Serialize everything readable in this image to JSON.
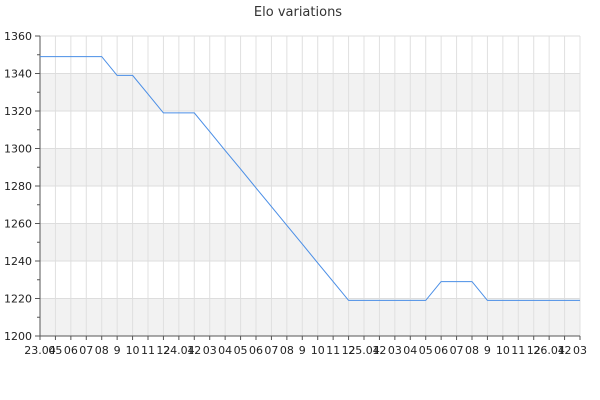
{
  "chart_data": {
    "type": "line",
    "title": "Elo variations",
    "xlabel": "",
    "ylabel": "",
    "ylim": [
      1200,
      1360
    ],
    "yticks": [
      1200,
      1220,
      1240,
      1260,
      1280,
      1300,
      1320,
      1340,
      1360
    ],
    "xticks": [
      "23.04",
      "05",
      "06",
      "07",
      "08",
      "9",
      "10",
      "11",
      "12",
      "24.04",
      "12",
      "03",
      "04",
      "05",
      "06",
      "07",
      "08",
      "9",
      "10",
      "11",
      "12",
      "25.04",
      "12",
      "03",
      "04",
      "05",
      "06",
      "07",
      "08",
      "9",
      "10",
      "11",
      "12",
      "26.04",
      "12",
      "03"
    ],
    "xticklabels_visible": [
      "23.04",
      "05",
      "06",
      "07",
      "08",
      "9",
      "10",
      "11",
      "12",
      "24.04",
      "12",
      "03",
      "04",
      "05",
      "06",
      "07",
      "08",
      "9",
      "10",
      "11",
      "12",
      "25.04",
      "12",
      "03",
      "04",
      "05",
      "06",
      "07",
      "08",
      "9",
      "10",
      "11",
      "12",
      "26.04",
      "12",
      "03"
    ],
    "grid": true,
    "series": [
      {
        "color": "#4a8ee6",
        "x": [
          0,
          1,
          2,
          3,
          4,
          5,
          6,
          7,
          8,
          9,
          10,
          11,
          12,
          13,
          14,
          15,
          16,
          17,
          18,
          19,
          20,
          21,
          22,
          23,
          24,
          25,
          26,
          27,
          28,
          29,
          30,
          31,
          32,
          33,
          34,
          35
        ],
        "values": [
          1349,
          1349,
          1349,
          1349,
          1349,
          1339,
          1339,
          1329,
          1319,
          1319,
          1319,
          1309,
          1299,
          1289,
          1279,
          1269,
          1259,
          1249,
          1239,
          1229,
          1219,
          1219,
          1219,
          1219,
          1219,
          1219,
          1229,
          1229,
          1229,
          1219,
          1219,
          1219,
          1219,
          1219,
          1219,
          1219
        ]
      }
    ]
  }
}
